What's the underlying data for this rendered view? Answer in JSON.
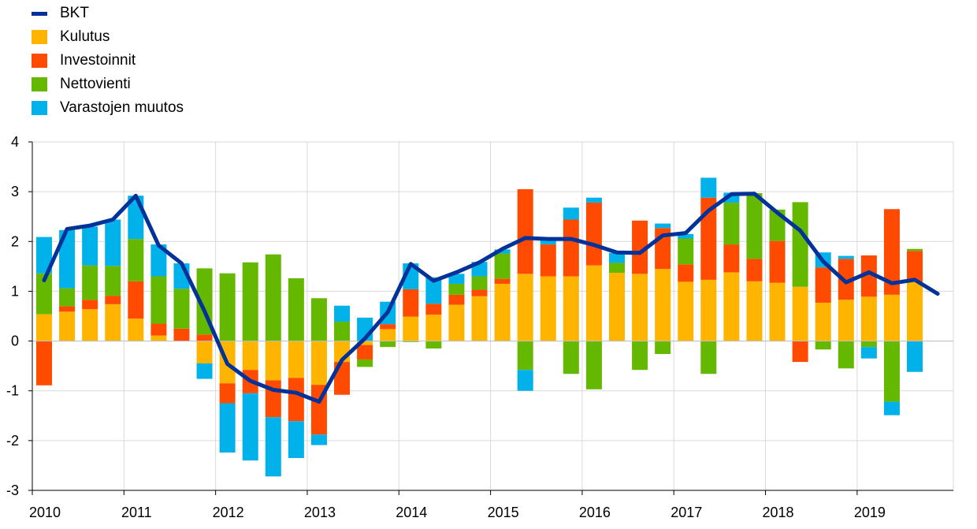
{
  "chart_data": {
    "type": "bar",
    "stacked": true,
    "title": "",
    "xlabel": "",
    "ylabel": "",
    "ylim": [
      -3,
      4
    ],
    "yticks": [
      -3,
      -2,
      -1,
      0,
      1,
      2,
      3,
      4
    ],
    "xticks": [
      "2010",
      "2011",
      "2012",
      "2013",
      "2014",
      "2015",
      "2016",
      "2017",
      "2018",
      "2019"
    ],
    "grid": true,
    "legend_position": "top-left",
    "quarters": [
      "2010Q1",
      "2010Q2",
      "2010Q3",
      "2010Q4",
      "2011Q1",
      "2011Q2",
      "2011Q3",
      "2011Q4",
      "2012Q1",
      "2012Q2",
      "2012Q3",
      "2012Q4",
      "2013Q1",
      "2013Q2",
      "2013Q3",
      "2013Q4",
      "2014Q1",
      "2014Q2",
      "2014Q3",
      "2014Q4",
      "2015Q1",
      "2015Q2",
      "2015Q3",
      "2015Q4",
      "2016Q1",
      "2016Q2",
      "2016Q3",
      "2016Q4",
      "2017Q1",
      "2017Q2",
      "2017Q3",
      "2017Q4",
      "2018Q1",
      "2018Q2",
      "2018Q3",
      "2018Q4",
      "2019Q1",
      "2019Q2",
      "2019Q3",
      "2019Q4"
    ],
    "series": [
      {
        "name": "Kulutus",
        "color": "#FFB400",
        "values": [
          0.54,
          0.59,
          0.64,
          0.74,
          0.45,
          0.11,
          0.0,
          -0.45,
          -0.85,
          -0.58,
          -0.79,
          -0.74,
          -0.88,
          -0.42,
          -0.08,
          0.24,
          0.49,
          0.53,
          0.73,
          0.9,
          1.15,
          1.35,
          1.3,
          1.3,
          1.52,
          1.37,
          1.35,
          1.45,
          1.19,
          1.23,
          1.38,
          1.2,
          1.17,
          1.09,
          0.77,
          0.83,
          0.89,
          0.93,
          1.19,
          0.0
        ]
      },
      {
        "name": "Investoinnit",
        "color": "#FF4B00",
        "values": [
          -0.89,
          0.11,
          0.19,
          0.17,
          0.75,
          0.24,
          0.25,
          0.13,
          -0.4,
          -0.47,
          -0.74,
          -0.87,
          -1.0,
          -0.66,
          -0.29,
          0.1,
          0.55,
          0.22,
          0.2,
          0.13,
          0.1,
          1.7,
          0.64,
          1.14,
          1.26,
          0.0,
          1.07,
          0.82,
          0.35,
          1.65,
          0.56,
          0.45,
          0.84,
          -0.42,
          0.71,
          0.82,
          0.83,
          1.72,
          0.62,
          0.0
        ]
      },
      {
        "name": "Nettovienti",
        "color": "#65B800",
        "values": [
          0.82,
          0.36,
          0.69,
          0.6,
          0.85,
          0.95,
          0.8,
          1.33,
          1.36,
          1.58,
          1.74,
          1.26,
          0.86,
          0.39,
          -0.15,
          -0.12,
          -0.02,
          -0.15,
          0.22,
          0.27,
          0.51,
          -0.58,
          0.0,
          -0.66,
          -0.97,
          0.2,
          -0.58,
          -0.26,
          0.52,
          -0.66,
          0.84,
          1.32,
          0.63,
          1.7,
          -0.17,
          -0.55,
          -0.12,
          -1.22,
          0.04,
          0.0
        ]
      },
      {
        "name": "Varastojen muutos",
        "color": "#00B1EA",
        "values": [
          0.73,
          1.17,
          0.78,
          0.93,
          0.87,
          0.64,
          0.51,
          -0.31,
          -0.99,
          -1.35,
          -1.19,
          -0.74,
          -0.21,
          0.32,
          0.47,
          0.45,
          0.52,
          0.53,
          0.2,
          0.29,
          0.08,
          -0.42,
          0.08,
          0.24,
          0.1,
          0.2,
          0.0,
          0.09,
          0.09,
          0.4,
          0.2,
          0.0,
          0.0,
          0.0,
          0.3,
          0.06,
          -0.23,
          -0.27,
          -0.62,
          0.0
        ]
      }
    ],
    "gdp_line": {
      "name": "BKT",
      "color": "#003299",
      "values": [
        1.22,
        2.25,
        2.32,
        2.44,
        2.92,
        1.92,
        1.56,
        0.6,
        -0.46,
        -0.8,
        -0.98,
        -1.04,
        -1.22,
        -0.38,
        0.05,
        0.58,
        1.55,
        1.21,
        1.38,
        1.58,
        1.85,
        2.07,
        2.05,
        2.05,
        1.93,
        1.78,
        1.77,
        2.12,
        2.17,
        2.62,
        2.95,
        2.96,
        2.58,
        2.22,
        1.6,
        1.18,
        1.38,
        1.16,
        1.23,
        0.95
      ]
    }
  },
  "legend": [
    {
      "label": "BKT",
      "color": "#003299",
      "kind": "line"
    },
    {
      "label": "Kulutus",
      "color": "#FFB400",
      "kind": "box"
    },
    {
      "label": "Investoinnit",
      "color": "#FF4B00",
      "kind": "box"
    },
    {
      "label": "Nettovienti",
      "color": "#65B800",
      "kind": "box"
    },
    {
      "label": "Varastojen muutos",
      "color": "#00B1EA",
      "kind": "box"
    }
  ]
}
